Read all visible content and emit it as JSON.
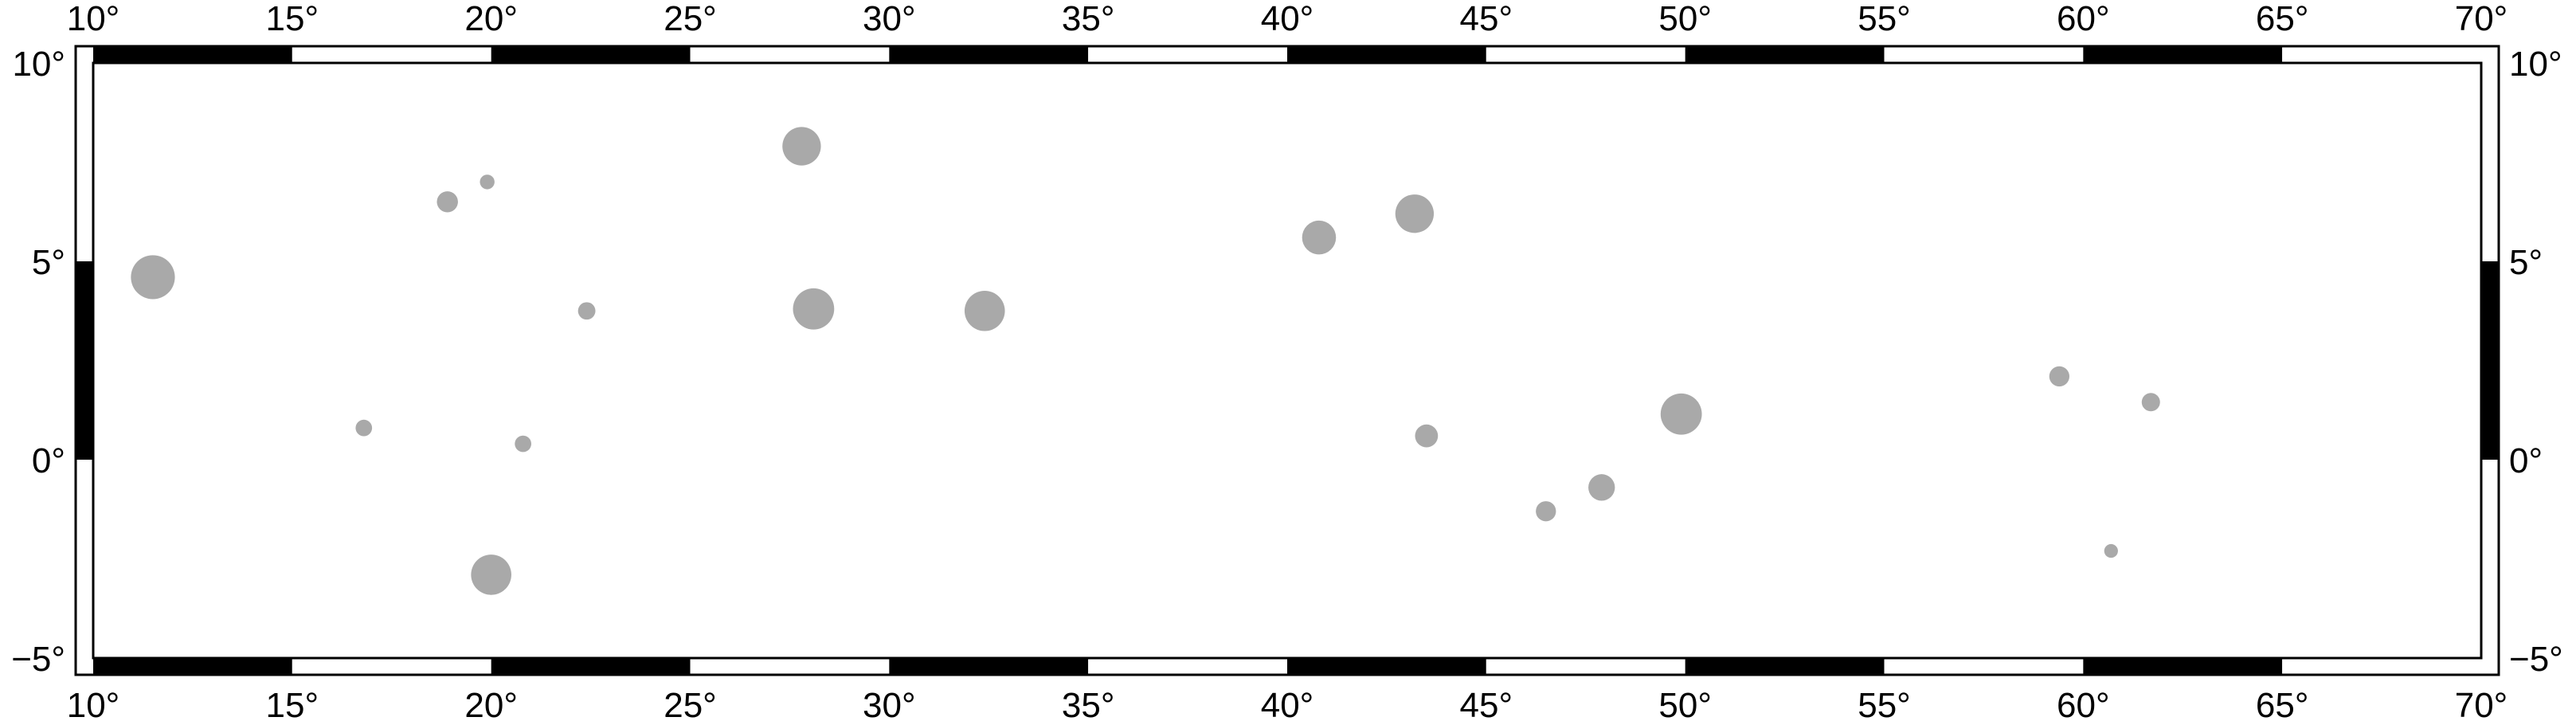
{
  "map": {
    "region": {
      "lon_min": 10,
      "lon_max": 70,
      "lat_min": -5,
      "lat_max": 10
    },
    "frame_style": "fancy",
    "colors": {
      "frame_black": "#000000",
      "frame_white": "#ffffff",
      "symbol_fill": "#a9a9a9",
      "background": "#ffffff"
    },
    "lon_labels": [
      "10°",
      "15°",
      "20°",
      "25°",
      "30°",
      "35°",
      "40°",
      "45°",
      "50°",
      "55°",
      "60°",
      "65°",
      "70°"
    ],
    "lat_labels_left": [
      "−5°",
      "0°",
      "5°",
      "10°"
    ],
    "lat_labels_right": [
      "−5°",
      "0°",
      "5°",
      "10°"
    ],
    "symbols": [
      {
        "lon": 11.5,
        "lat": 4.6,
        "size": 2.4
      },
      {
        "lon": 16.8,
        "lat": 0.8,
        "size": 0.9
      },
      {
        "lon": 18.9,
        "lat": 6.5,
        "size": 1.15
      },
      {
        "lon": 19.9,
        "lat": 7.0,
        "size": 0.8
      },
      {
        "lon": 20.0,
        "lat": -2.9,
        "size": 2.2
      },
      {
        "lon": 20.8,
        "lat": 0.4,
        "size": 0.9
      },
      {
        "lon": 22.4,
        "lat": 3.75,
        "size": 0.95
      },
      {
        "lon": 27.8,
        "lat": 7.9,
        "size": 2.1
      },
      {
        "lon": 28.1,
        "lat": 3.8,
        "size": 2.25
      },
      {
        "lon": 32.4,
        "lat": 3.75,
        "size": 2.2
      },
      {
        "lon": 40.8,
        "lat": 5.6,
        "size": 1.85
      },
      {
        "lon": 43.2,
        "lat": 6.2,
        "size": 2.1
      },
      {
        "lon": 43.5,
        "lat": 0.6,
        "size": 1.25
      },
      {
        "lon": 46.5,
        "lat": -1.3,
        "size": 1.1
      },
      {
        "lon": 47.9,
        "lat": -0.7,
        "size": 1.45
      },
      {
        "lon": 49.9,
        "lat": 1.15,
        "size": 2.25
      },
      {
        "lon": 59.4,
        "lat": 2.1,
        "size": 1.1
      },
      {
        "lon": 60.7,
        "lat": -2.3,
        "size": 0.75
      },
      {
        "lon": 61.7,
        "lat": 1.45,
        "size": 1.0
      }
    ]
  }
}
